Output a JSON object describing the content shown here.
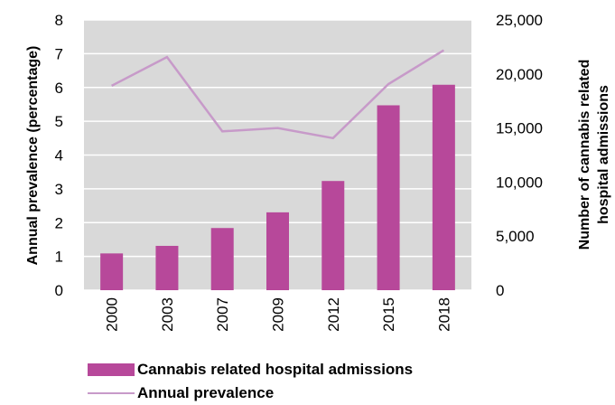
{
  "chart_data": {
    "type": "bar+line",
    "categories": [
      "2000",
      "2003",
      "2007",
      "2009",
      "2012",
      "2015",
      "2018"
    ],
    "series": [
      {
        "name": "Cannabis related hospital admissions",
        "type": "bar",
        "axis": "right",
        "color": "#b7489a",
        "values": [
          3400,
          4100,
          5750,
          7200,
          10100,
          17100,
          19000
        ]
      },
      {
        "name": "Annual prevalence",
        "type": "line",
        "axis": "left",
        "color": "#c79ac9",
        "values": [
          6.05,
          6.9,
          4.7,
          4.8,
          4.5,
          6.1,
          7.1
        ]
      }
    ],
    "left_axis": {
      "label": "Annual prevalence (percentage)",
      "ylim": [
        0,
        8
      ],
      "ticks": [
        "0",
        "1",
        "2",
        "3",
        "4",
        "5",
        "6",
        "7",
        "8"
      ]
    },
    "right_axis": {
      "label_line1": "Number of cannabis related",
      "label_line2": "hospital admissions",
      "ylim": [
        0,
        25000
      ],
      "ticks": [
        "0",
        "5,000",
        "10,000",
        "15,000",
        "20,000",
        "25,000"
      ]
    },
    "grid": true,
    "plot_background": "#d9d9d9",
    "legend_position": "bottom"
  }
}
